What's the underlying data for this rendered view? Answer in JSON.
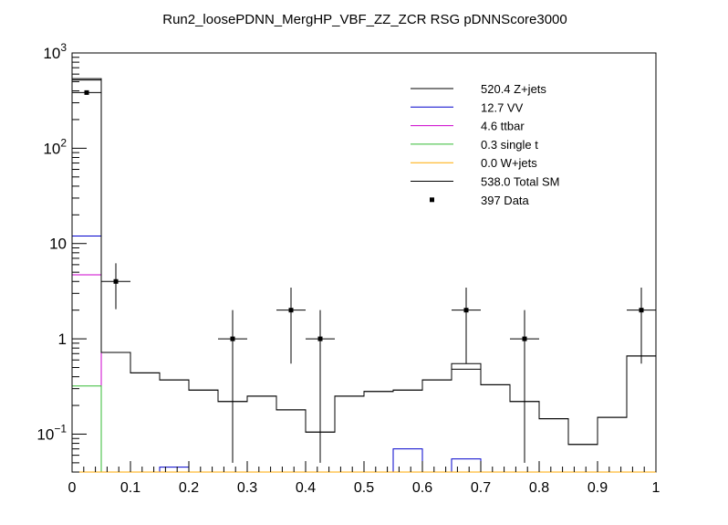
{
  "chart_data": {
    "type": "histogram",
    "title": "Run2_loosePDNN_MergHP_VBF_ZZ_ZCR RSG  pDNNScore3000",
    "xlabel": "",
    "ylabel": "",
    "xlim": [
      0,
      1
    ],
    "ylog": true,
    "ylim": [
      0.04,
      1000
    ],
    "x_ticks": [
      0,
      0.1,
      0.2,
      0.3,
      0.4,
      0.5,
      0.6,
      0.7,
      0.8,
      0.9,
      1
    ],
    "x_tick_labels": [
      "0",
      "0.1",
      "0.2",
      "0.3",
      "0.4",
      "0.5",
      "0.6",
      "0.7",
      "0.8",
      "0.9",
      "1"
    ],
    "y_ticks": [
      {
        "value": 0.1,
        "base": "10",
        "exp": "−1"
      },
      {
        "value": 1,
        "label": "1"
      },
      {
        "value": 10,
        "label": "10"
      },
      {
        "value": 100,
        "base": "10",
        "exp": "2"
      },
      {
        "value": 1000,
        "base": "10",
        "exp": "3"
      }
    ],
    "bin_edges": [
      0,
      0.05,
      0.1,
      0.15,
      0.2,
      0.25,
      0.3,
      0.35,
      0.4,
      0.45,
      0.5,
      0.55,
      0.6,
      0.65,
      0.7,
      0.75,
      0.8,
      0.85,
      0.9,
      0.95,
      1.0
    ],
    "series": [
      {
        "name": "Z+jets",
        "legend": "520.4 Z+jets",
        "color": "#000000",
        "values": [
          520,
          0.72,
          0.44,
          0.37,
          0.29,
          0.22,
          0.25,
          0.18,
          0.105,
          0.25,
          0.28,
          0.29,
          0.37,
          0.48,
          0.33,
          0.22,
          0.145,
          0.078,
          0.15,
          0.66
        ]
      },
      {
        "name": "VV",
        "legend": "12.7 VV",
        "color": "#0000cc",
        "values": [
          12.0,
          0,
          0,
          0.045,
          0,
          0,
          0,
          0,
          0,
          0,
          0,
          0.07,
          0,
          0.055,
          0,
          0,
          0,
          0,
          0,
          0
        ]
      },
      {
        "name": "ttbar",
        "legend": "4.6 ttbar",
        "color": "#cc00cc",
        "values": [
          4.7,
          0,
          0,
          0,
          0,
          0,
          0,
          0,
          0,
          0,
          0,
          0,
          0,
          0,
          0,
          0,
          0,
          0,
          0,
          0
        ]
      },
      {
        "name": "single t",
        "legend": "0.3 single t",
        "color": "#33bb33",
        "values": [
          0.32,
          0,
          0,
          0,
          0,
          0,
          0,
          0,
          0,
          0,
          0,
          0,
          0,
          0,
          0,
          0,
          0,
          0,
          0,
          0
        ]
      },
      {
        "name": "W+jets",
        "legend": "0.0 W+jets",
        "color": "#ffaa00",
        "values": [
          0,
          0,
          0,
          0,
          0,
          0,
          0,
          0,
          0,
          0,
          0,
          0,
          0,
          0,
          0,
          0,
          0,
          0,
          0,
          0
        ]
      },
      {
        "name": "Total SM",
        "legend": "538.0 Total SM",
        "color": "#000000",
        "values": [
          538,
          0.72,
          0.44,
          0.37,
          0.29,
          0.22,
          0.25,
          0.18,
          0.105,
          0.25,
          0.28,
          0.29,
          0.37,
          0.55,
          0.33,
          0.22,
          0.145,
          0.078,
          0.15,
          0.66
        ]
      }
    ],
    "data_points": {
      "name": "Data",
      "legend": "397 Data",
      "color": "#000000",
      "points": [
        {
          "x": 0.025,
          "y": 384,
          "err_lo": 20,
          "err_hi": 20
        },
        {
          "x": 0.075,
          "y": 4,
          "err_lo": 1.95,
          "err_hi": 2.2
        },
        {
          "x": 0.275,
          "y": 1,
          "err_lo": 0.95,
          "err_hi": 1.0
        },
        {
          "x": 0.375,
          "y": 2,
          "err_lo": 1.45,
          "err_hi": 1.45
        },
        {
          "x": 0.425,
          "y": 1,
          "err_lo": 0.95,
          "err_hi": 1.0
        },
        {
          "x": 0.675,
          "y": 2,
          "err_lo": 1.45,
          "err_hi": 1.45
        },
        {
          "x": 0.775,
          "y": 1,
          "err_lo": 0.95,
          "err_hi": 1.0
        },
        {
          "x": 0.975,
          "y": 2,
          "err_lo": 1.45,
          "err_hi": 1.45
        }
      ],
      "x_err": 0.025
    }
  }
}
